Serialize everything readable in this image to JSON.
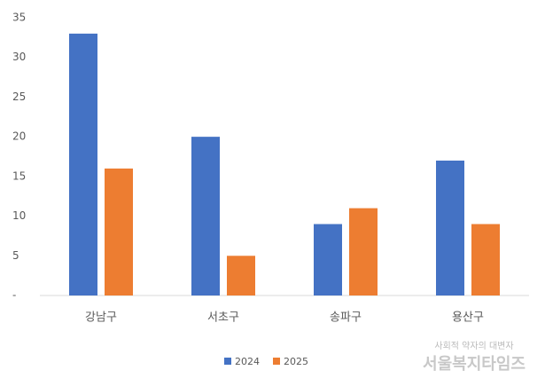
{
  "chart_data": {
    "type": "bar",
    "categories": [
      "강남구",
      "서초구",
      "송파구",
      "용산구"
    ],
    "series": [
      {
        "name": "2024",
        "color": "#4472c4",
        "values": [
          33,
          20,
          9,
          17
        ]
      },
      {
        "name": "2025",
        "color": "#ed7d31",
        "values": [
          16,
          5,
          11,
          9
        ]
      }
    ],
    "ylim": [
      0,
      35
    ],
    "yticks": [
      {
        "value": 0,
        "label": "-"
      },
      5,
      10,
      15,
      20,
      25,
      30,
      35
    ],
    "grid": false,
    "legend": "bottom"
  },
  "watermark": {
    "tagline": "사회적 약자의 대변자",
    "name": "서울복지타임즈"
  }
}
